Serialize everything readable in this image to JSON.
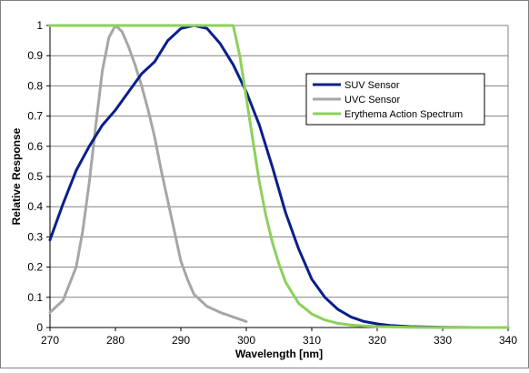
{
  "chart_data": {
    "type": "line",
    "title": "",
    "xlabel": "Wavelength [nm]",
    "ylabel": "Relative Response",
    "xlim": [
      270,
      340
    ],
    "ylim": [
      0,
      1
    ],
    "xticks": [
      "270",
      "280",
      "290",
      "300",
      "310",
      "320",
      "330",
      "340"
    ],
    "yticks": [
      "0",
      "0.1",
      "0.2",
      "0.3",
      "0.4",
      "0.5",
      "0.6",
      "0.7",
      "0.8",
      "0.9",
      "1"
    ],
    "grid": "horizontal",
    "legend_position": "right",
    "series": [
      {
        "name": "SUV Sensor",
        "color": "#0a1f8a",
        "x": [
          270,
          272,
          274,
          276,
          278,
          280,
          282,
          284,
          286,
          288,
          290,
          292,
          294,
          296,
          298,
          300,
          302,
          304,
          306,
          308,
          310,
          312,
          314,
          316,
          318,
          320,
          322,
          325,
          330,
          335,
          340
        ],
        "y": [
          0.29,
          0.41,
          0.52,
          0.6,
          0.67,
          0.72,
          0.78,
          0.84,
          0.88,
          0.95,
          0.99,
          1.0,
          0.99,
          0.94,
          0.87,
          0.78,
          0.67,
          0.53,
          0.38,
          0.26,
          0.16,
          0.1,
          0.06,
          0.035,
          0.02,
          0.012,
          0.007,
          0.003,
          0.001,
          0.0,
          0.0
        ]
      },
      {
        "name": "UVC Sensor",
        "color": "#a6a6a6",
        "x": [
          270,
          272,
          274,
          275,
          276,
          277,
          278,
          279,
          280,
          281,
          282,
          283,
          284,
          285,
          286,
          287,
          288,
          289,
          290,
          291,
          292,
          294,
          296,
          298,
          300
        ],
        "y": [
          0.05,
          0.09,
          0.2,
          0.32,
          0.48,
          0.67,
          0.85,
          0.96,
          1.0,
          0.98,
          0.93,
          0.87,
          0.8,
          0.72,
          0.63,
          0.52,
          0.42,
          0.32,
          0.22,
          0.16,
          0.11,
          0.07,
          0.05,
          0.035,
          0.02
        ]
      },
      {
        "name": "Erythema Action Spectrum",
        "color": "#8dd05a",
        "x": [
          270,
          280,
          290,
          297,
          298,
          299,
          300,
          301,
          302,
          303,
          304,
          305,
          306,
          308,
          310,
          312,
          314,
          316,
          318,
          320,
          325,
          330,
          340
        ],
        "y": [
          1.0,
          1.0,
          1.0,
          1.0,
          1.0,
          0.9,
          0.76,
          0.62,
          0.48,
          0.37,
          0.28,
          0.21,
          0.15,
          0.08,
          0.045,
          0.025,
          0.014,
          0.008,
          0.005,
          0.003,
          0.001,
          0.0,
          0.0
        ]
      }
    ]
  }
}
